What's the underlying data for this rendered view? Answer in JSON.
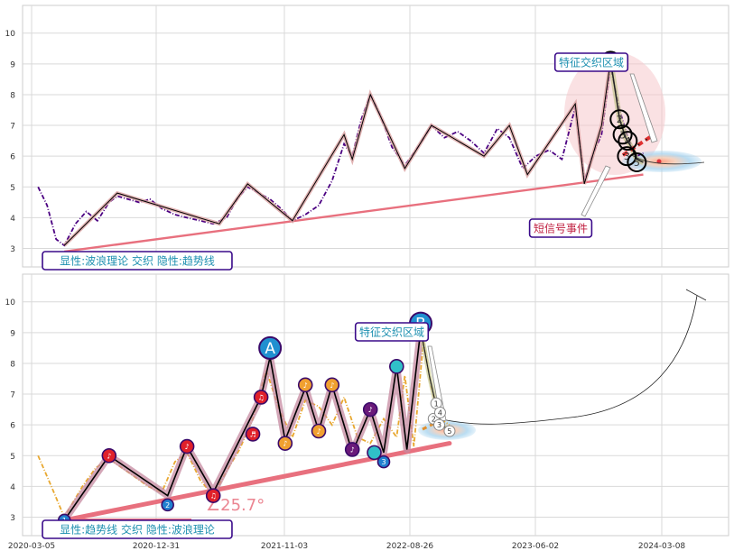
{
  "chart_data": [
    {
      "type": "line",
      "panel": "top",
      "ylim": [
        2.4,
        10.9
      ],
      "yticks": [
        3,
        4,
        5,
        6,
        7,
        8,
        9,
        10
      ],
      "grid": true,
      "colors": {
        "price": "#4b0082",
        "wave": "#000000",
        "wave_glow": "#d9a0a0",
        "trend": "#e8707e",
        "label_border": "#3a0a8a",
        "label_text": "#1e90b0",
        "signal_text": "#c02040",
        "pink_zone": "#f6c9cc",
        "blue_zone": "#a8d4ef"
      },
      "price_series": [
        [
          "2020-03-20",
          5.0
        ],
        [
          "2020-04-10",
          4.4
        ],
        [
          "2020-05-01",
          3.3
        ],
        [
          "2020-05-20",
          3.1
        ],
        [
          "2020-06-15",
          3.8
        ],
        [
          "2020-07-10",
          4.2
        ],
        [
          "2020-08-05",
          3.9
        ],
        [
          "2020-09-01",
          4.5
        ],
        [
          "2020-09-20",
          4.7
        ],
        [
          "2020-10-15",
          4.6
        ],
        [
          "2020-11-10",
          4.5
        ],
        [
          "2020-12-05",
          4.6
        ],
        [
          "2021-01-01",
          4.3
        ],
        [
          "2021-02-01",
          4.1
        ],
        [
          "2021-03-01",
          4.0
        ],
        [
          "2021-04-01",
          3.9
        ],
        [
          "2021-05-01",
          3.8
        ],
        [
          "2021-06-01",
          4.0
        ],
        [
          "2021-06-25",
          4.6
        ],
        [
          "2021-07-20",
          5.0
        ],
        [
          "2021-08-15",
          4.8
        ],
        [
          "2021-09-10",
          4.6
        ],
        [
          "2021-10-05",
          4.3
        ],
        [
          "2021-11-01",
          3.9
        ],
        [
          "2021-12-01",
          4.1
        ],
        [
          "2022-01-01",
          4.4
        ],
        [
          "2022-02-01",
          5.2
        ],
        [
          "2022-03-01",
          6.4
        ],
        [
          "2022-03-20",
          6.0
        ],
        [
          "2022-04-10",
          7.2
        ],
        [
          "2022-05-01",
          8.0
        ],
        [
          "2022-05-25",
          7.3
        ],
        [
          "2022-06-20",
          6.3
        ],
        [
          "2022-07-20",
          5.7
        ],
        [
          "2022-08-20",
          6.3
        ],
        [
          "2022-09-20",
          7.0
        ],
        [
          "2022-10-20",
          6.6
        ],
        [
          "2022-11-20",
          6.8
        ],
        [
          "2022-12-20",
          6.5
        ],
        [
          "2023-01-20",
          6.1
        ],
        [
          "2023-02-20",
          6.9
        ],
        [
          "2023-03-20",
          6.6
        ],
        [
          "2023-04-20",
          5.6
        ],
        [
          "2023-05-20",
          6.0
        ],
        [
          "2023-06-20",
          6.2
        ],
        [
          "2023-07-20",
          5.9
        ],
        [
          "2023-08-20",
          7.6
        ],
        [
          "2023-09-10",
          5.2
        ],
        [
          "2023-10-01",
          6.1
        ],
        [
          "2023-10-20",
          6.7
        ],
        [
          "2023-11-10",
          8.9
        ],
        [
          "2023-12-01",
          7.5
        ],
        [
          "2023-12-20",
          6.6
        ],
        [
          "2024-01-10",
          6.0
        ],
        [
          "2024-01-25",
          6.1
        ]
      ],
      "wave_series": [
        [
          "2020-05-20",
          3.1
        ],
        [
          "2020-09-20",
          4.8
        ],
        [
          "2021-05-15",
          3.8
        ],
        [
          "2021-07-20",
          5.1
        ],
        [
          "2021-11-01",
          3.9
        ],
        [
          "2022-03-01",
          6.7
        ],
        [
          "2022-03-20",
          5.9
        ],
        [
          "2022-05-01",
          8.0
        ],
        [
          "2022-07-20",
          5.6
        ],
        [
          "2022-09-20",
          7.0
        ],
        [
          "2023-01-20",
          6.0
        ],
        [
          "2023-03-20",
          7.0
        ],
        [
          "2023-05-01",
          5.4
        ],
        [
          "2023-08-20",
          7.7
        ],
        [
          "2023-09-10",
          5.1
        ],
        [
          "2023-10-20",
          7.0
        ],
        [
          "2023-11-10",
          9.1
        ]
      ],
      "trend_line": [
        [
          "2020-05-20",
          2.9
        ],
        [
          "2024-01-25",
          5.4
        ]
      ],
      "projection": [
        [
          "2023-11-10",
          9.1
        ],
        [
          "2023-12-01",
          7.2
        ],
        [
          "2023-12-15",
          6.6
        ],
        [
          "2023-12-28",
          6.3
        ],
        [
          "2024-01-10",
          5.9
        ],
        [
          "2024-01-25",
          5.8
        ]
      ],
      "wave_markers": [
        {
          "date": "2023-11-10",
          "value": 9.1,
          "label": "0"
        },
        {
          "date": "2023-12-01",
          "value": 7.2,
          "label": "2"
        },
        {
          "date": "2023-12-08",
          "value": 6.7,
          "label": "3"
        },
        {
          "date": "2023-12-20",
          "value": 6.5,
          "label": "4"
        },
        {
          "date": "2023-12-18",
          "value": 6.0,
          "label": "3"
        },
        {
          "date": "2024-01-10",
          "value": 5.8,
          "label": "5"
        }
      ],
      "annotations": [
        {
          "text": "特征交织区域"
        },
        {
          "text": "短信号事件"
        },
        {
          "text": "显性:波浪理论 交织 隐性:趋势线"
        }
      ]
    },
    {
      "type": "line",
      "panel": "bottom",
      "ylim": [
        2.4,
        10.9
      ],
      "yticks": [
        3,
        4,
        5,
        6,
        7,
        8,
        9,
        10
      ],
      "grid": true,
      "colors": {
        "price": "#e8a830",
        "wave": "#000000",
        "wave_glow": "#c58aa0",
        "trend": "#e8707e",
        "marker_red": "#e0202a",
        "marker_orange": "#f0a030",
        "marker_blue": "#2080d0",
        "marker_teal": "#30c0c8",
        "marker_purple": "#6a1a7a",
        "big_marker": "#2090d0"
      },
      "x_axis": {
        "ticks": [
          "2020-03-05",
          "2020-12-31",
          "2021-11-03",
          "2022-08-26",
          "2023-06-02",
          "2024-03-08"
        ]
      },
      "price_series": [
        [
          "2020-03-20",
          5.0
        ],
        [
          "2020-04-20",
          4.0
        ],
        [
          "2020-05-20",
          3.0
        ],
        [
          "2020-07-01",
          4.0
        ],
        [
          "2020-08-01",
          4.6
        ],
        [
          "2020-09-01",
          4.9
        ],
        [
          "2020-10-01",
          4.6
        ],
        [
          "2020-11-01",
          4.3
        ],
        [
          "2020-12-01",
          4.0
        ],
        [
          "2021-01-01",
          3.8
        ],
        [
          "2021-02-01",
          4.8
        ],
        [
          "2021-03-01",
          5.1
        ],
        [
          "2021-04-01",
          4.2
        ],
        [
          "2021-05-01",
          3.7
        ],
        [
          "2021-06-01",
          4.5
        ],
        [
          "2021-07-01",
          5.2
        ],
        [
          "2021-08-01",
          6.2
        ],
        [
          "2021-09-01",
          7.8
        ],
        [
          "2021-10-01",
          6.5
        ],
        [
          "2021-11-01",
          5.6
        ],
        [
          "2021-12-01",
          6.8
        ],
        [
          "2022-01-01",
          6.6
        ],
        [
          "2022-02-01",
          6.0
        ],
        [
          "2022-03-01",
          6.9
        ],
        [
          "2022-04-01",
          5.6
        ],
        [
          "2022-05-01",
          5.4
        ],
        [
          "2022-06-01",
          6.2
        ],
        [
          "2022-07-01",
          5.6
        ],
        [
          "2022-07-20",
          7.6
        ],
        [
          "2022-08-10",
          5.3
        ],
        [
          "2022-09-01",
          8.7
        ],
        [
          "2022-09-20",
          7.2
        ],
        [
          "2022-10-10",
          6.2
        ],
        [
          "2022-11-01",
          6.0
        ]
      ],
      "wave_series": [
        [
          "2020-05-20",
          2.9
        ],
        [
          "2020-09-01",
          5.0
        ],
        [
          "2021-01-15",
          3.7
        ],
        [
          "2021-03-01",
          5.3
        ],
        [
          "2021-05-01",
          3.8
        ],
        [
          "2021-08-20",
          6.9
        ],
        [
          "2021-09-10",
          8.2
        ],
        [
          "2021-10-15",
          5.5
        ],
        [
          "2021-12-01",
          7.2
        ],
        [
          "2022-01-01",
          5.8
        ],
        [
          "2022-02-01",
          7.3
        ],
        [
          "2022-03-20",
          5.1
        ],
        [
          "2022-05-01",
          6.5
        ],
        [
          "2022-06-01",
          5.1
        ],
        [
          "2022-07-01",
          7.9
        ],
        [
          "2022-07-25",
          5.2
        ],
        [
          "2022-08-26",
          9.1
        ]
      ],
      "trend_line": [
        [
          "2020-05-20",
          2.9
        ],
        [
          "2022-11-01",
          5.4
        ]
      ],
      "projection": [
        [
          "2022-08-26",
          9.1
        ],
        [
          "2022-09-15",
          7.6
        ],
        [
          "2022-10-01",
          6.6
        ],
        [
          "2022-10-15",
          6.0
        ],
        [
          "2022-11-01",
          5.8
        ]
      ],
      "markers": [
        {
          "date": "2020-05-20",
          "value": 2.9,
          "kind": "blue",
          "label": "1"
        },
        {
          "date": "2020-09-01",
          "value": 5.0,
          "kind": "red",
          "label": "♪"
        },
        {
          "date": "2021-01-15",
          "value": 3.4,
          "kind": "blue",
          "label": "2"
        },
        {
          "date": "2021-03-01",
          "value": 5.3,
          "kind": "red",
          "label": "♪"
        },
        {
          "date": "2021-05-01",
          "value": 3.7,
          "kind": "red",
          "label": "♫"
        },
        {
          "date": "2021-08-20",
          "value": 6.9,
          "kind": "red",
          "label": "♫"
        },
        {
          "date": "2021-08-01",
          "value": 5.7,
          "kind": "red",
          "label": "♬"
        },
        {
          "date": "2021-10-15",
          "value": 5.4,
          "kind": "orange",
          "label": "♪"
        },
        {
          "date": "2021-12-01",
          "value": 7.3,
          "kind": "orange",
          "label": "♪"
        },
        {
          "date": "2022-01-01",
          "value": 5.8,
          "kind": "orange",
          "label": "♪"
        },
        {
          "date": "2022-02-01",
          "value": 7.3,
          "kind": "orange",
          "label": "♪"
        },
        {
          "date": "2022-03-20",
          "value": 5.2,
          "kind": "purple",
          "label": "♪"
        },
        {
          "date": "2022-05-01",
          "value": 6.5,
          "kind": "purple",
          "label": "♪"
        },
        {
          "date": "2022-05-10",
          "value": 5.1,
          "kind": "teal",
          "label": ""
        },
        {
          "date": "2022-06-01",
          "value": 4.8,
          "kind": "blue",
          "label": "3"
        },
        {
          "date": "2022-07-01",
          "value": 7.9,
          "kind": "teal",
          "label": ""
        }
      ],
      "big_markers": [
        {
          "date": "2021-09-10",
          "value": 8.5,
          "label": "A"
        },
        {
          "date": "2022-08-26",
          "value": 9.3,
          "label": "B"
        }
      ],
      "count_markers": [
        {
          "date": "2022-09-25",
          "value": 6.2,
          "label": "2"
        },
        {
          "date": "2022-10-01",
          "value": 6.7,
          "label": "1"
        },
        {
          "date": "2022-10-10",
          "value": 6.4,
          "label": "4"
        },
        {
          "date": "2022-10-08",
          "value": 6.0,
          "label": "3"
        },
        {
          "date": "2022-11-01",
          "value": 5.8,
          "label": "5"
        }
      ],
      "angle_label": "∠25.7°",
      "annotations": [
        {
          "text": "特征交织区域"
        },
        {
          "text": "显性:趋势线 交织 隐性:波浪理论"
        }
      ]
    }
  ]
}
